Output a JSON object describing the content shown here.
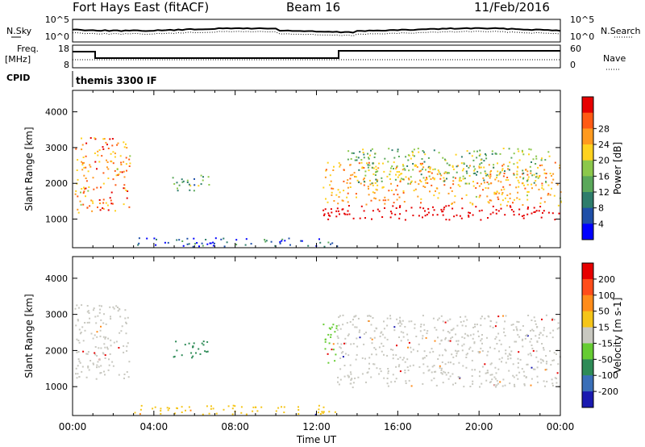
{
  "header": {
    "station": "Fort Hays East (fitACF)",
    "beam": "Beam 16",
    "date": "11/Feb/2016",
    "mode_label": "themis 3300 IF"
  },
  "side_labels": {
    "nsky": "N.Sky",
    "nsearch": "N.Search",
    "freq": "Freq.",
    "freq_unit": "[MHz]",
    "nave": "Nave",
    "cpid": "CPID",
    "nsky_top": "10^5",
    "nsky_bottom": "10^0",
    "nsearch_top": "10^5",
    "nsearch_bottom": "10^0",
    "freq_top": "18",
    "freq_bottom": "8",
    "nave_top": "60",
    "nave_bottom": "0"
  },
  "chart_data": [
    {
      "type": "heatmap",
      "name": "power-panel",
      "ylabel": "Slant Range [km]",
      "xlabel": "Time UT",
      "x_ticks": [
        "00:00",
        "04:00",
        "08:00",
        "12:00",
        "16:00",
        "20:00",
        "00:00"
      ],
      "y_ticks": [
        1000,
        2000,
        3000,
        4000
      ],
      "ylim": [
        200,
        4600
      ],
      "xlim_hours": [
        0,
        24
      ],
      "colorbar": {
        "label": "Power [dB]",
        "ticks": [
          "4",
          "8",
          "12",
          "16",
          "20",
          "24",
          "28"
        ],
        "colors": [
          "#0000ff",
          "#1f4fa8",
          "#2e7d6b",
          "#5aa85a",
          "#8cc84b",
          "#ffd21f",
          "#ff9a1f",
          "#ff5a14",
          "#e60000"
        ]
      },
      "features": [
        {
          "t0": 0.1,
          "t1": 2.8,
          "r0": 1200,
          "r1": 3300,
          "level": 0.75
        },
        {
          "t0": 4.9,
          "t1": 6.8,
          "r0": 1800,
          "r1": 2300,
          "level": 0.4
        },
        {
          "t0": 12.3,
          "t1": 24.0,
          "r0": 1000,
          "r1": 2600,
          "level": 0.9
        },
        {
          "t0": 13.5,
          "t1": 23.5,
          "r0": 2000,
          "r1": 3000,
          "level": 0.45
        },
        {
          "t0": 3.0,
          "t1": 13.0,
          "r0": 250,
          "r1": 500,
          "level": 0.2
        }
      ]
    },
    {
      "type": "heatmap",
      "name": "velocity-panel",
      "ylabel": "Slant Range [km]",
      "xlabel": "Time UT",
      "x_ticks": [
        "00:00",
        "04:00",
        "08:00",
        "12:00",
        "16:00",
        "20:00",
        "00:00"
      ],
      "y_ticks": [
        1000,
        2000,
        3000,
        4000
      ],
      "ylim": [
        200,
        4600
      ],
      "xlim_hours": [
        0,
        24
      ],
      "colorbar": {
        "label": "Velocity [m s-1]",
        "ticks": [
          "200",
          "100",
          "50",
          "15",
          "-15",
          "-50",
          "-100",
          "-200"
        ],
        "colors": [
          "#1a1ab0",
          "#3a6fb8",
          "#2e8b57",
          "#66cc33",
          "#c8c8c0",
          "#f5c518",
          "#ff8c1a",
          "#ff4d1a",
          "#e60000"
        ]
      },
      "features": [
        {
          "t0": 0.1,
          "t1": 2.8,
          "r0": 1200,
          "r1": 3300,
          "vel": "gray"
        },
        {
          "t0": 4.9,
          "t1": 6.8,
          "r0": 1800,
          "r1": 2300,
          "vel": "teal"
        },
        {
          "t0": 12.3,
          "t1": 13.0,
          "r0": 1600,
          "r1": 2900,
          "vel": "green"
        },
        {
          "t0": 13.0,
          "t1": 24.0,
          "r0": 1000,
          "r1": 3000,
          "vel": "gray"
        },
        {
          "t0": 3.0,
          "t1": 13.0,
          "r0": 250,
          "r1": 500,
          "vel": "yellow"
        }
      ]
    }
  ],
  "colors": {
    "frame": "#000000",
    "dotted": "#000000"
  }
}
